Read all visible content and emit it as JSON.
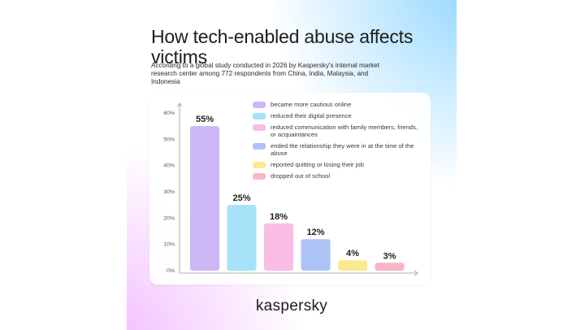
{
  "title": "How tech-enabled abuse affects victims",
  "subtitle": "According to a global study conducted in 2026 by Kaspersky's internal market research center among 772 respondents from China, India, Malaysia, and Indonesia",
  "brand": "kaspersky",
  "colors": [
    "#cdb6f6",
    "#a6e3f8",
    "#f9bde6",
    "#aec3f5",
    "#fae98e",
    "#f9b6c4"
  ],
  "chart_data": {
    "type": "bar",
    "title": "",
    "xlabel": "",
    "ylabel": "",
    "ylim": [
      0,
      60
    ],
    "yticks": [
      "0%",
      "10%",
      "20%",
      "30%",
      "40%",
      "50%",
      "60%"
    ],
    "grid": false,
    "legend_position": "top-right",
    "categories": [
      "became more cautious online",
      "reduced their digital presence",
      "reduced communication with family members, friends, or acquaintances",
      "ended the relationship they were in at the time of the abuse",
      "reported quitting or losing their job",
      "dropped out of school"
    ],
    "values": [
      55,
      25,
      18,
      12,
      4,
      3
    ],
    "value_labels": [
      "55%",
      "25%",
      "18%",
      "12%",
      "4%",
      "3%"
    ]
  }
}
